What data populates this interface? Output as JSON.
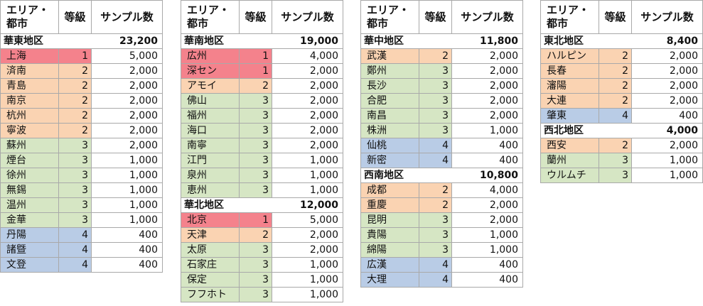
{
  "headers": {
    "area": "エリア・\n都市",
    "grade": "等級",
    "sample": "サンプル数"
  },
  "grade_colors": {
    "1": "#f4828c",
    "2": "#fad3b2",
    "3": "#d6e6c4",
    "4": "#b9cce6"
  },
  "columns": [
    {
      "left": 0,
      "sections": [
        {
          "region": "華東地区",
          "total": "23,200",
          "cities": [
            {
              "name": "上海",
              "grade": "1",
              "samples": "5,000"
            },
            {
              "name": "済南",
              "grade": "2",
              "samples": "2,000"
            },
            {
              "name": "青島",
              "grade": "2",
              "samples": "2,000"
            },
            {
              "name": "南京",
              "grade": "2",
              "samples": "2,000"
            },
            {
              "name": "杭州",
              "grade": "2",
              "samples": "2,000"
            },
            {
              "name": "寧波",
              "grade": "2",
              "samples": "2,000"
            },
            {
              "name": "蘇州",
              "grade": "3",
              "samples": "2,000"
            },
            {
              "name": "煙台",
              "grade": "3",
              "samples": "1,000"
            },
            {
              "name": "徐州",
              "grade": "3",
              "samples": "1,000"
            },
            {
              "name": "無錫",
              "grade": "3",
              "samples": "1,000"
            },
            {
              "name": "温州",
              "grade": "3",
              "samples": "1,000"
            },
            {
              "name": "金華",
              "grade": "3",
              "samples": "1,000"
            },
            {
              "name": "丹陽",
              "grade": "4",
              "samples": "400"
            },
            {
              "name": "諸曁",
              "grade": "4",
              "samples": "400"
            },
            {
              "name": "文登",
              "grade": "4",
              "samples": "400"
            }
          ]
        }
      ]
    },
    {
      "left": 254,
      "sections": [
        {
          "region": "華南地区",
          "total": "19,000",
          "cities": [
            {
              "name": "広州",
              "grade": "1",
              "samples": "4,000"
            },
            {
              "name": "深セン",
              "grade": "1",
              "samples": "2,000"
            },
            {
              "name": "アモイ",
              "grade": "2",
              "samples": "2,000"
            },
            {
              "name": "佛山",
              "grade": "3",
              "samples": "2,000"
            },
            {
              "name": "福州",
              "grade": "3",
              "samples": "2,000"
            },
            {
              "name": "海口",
              "grade": "3",
              "samples": "2,000"
            },
            {
              "name": "南寧",
              "grade": "3",
              "samples": "2,000"
            },
            {
              "name": "江門",
              "grade": "3",
              "samples": "1,000"
            },
            {
              "name": "泉州",
              "grade": "3",
              "samples": "1,000"
            },
            {
              "name": "恵州",
              "grade": "3",
              "samples": "1,000"
            }
          ]
        },
        {
          "region": "華北地区",
          "total": "12,000",
          "cities": [
            {
              "name": "北京",
              "grade": "1",
              "samples": "5,000"
            },
            {
              "name": "天津",
              "grade": "2",
              "samples": "2,000"
            },
            {
              "name": "太原",
              "grade": "3",
              "samples": "2,000"
            },
            {
              "name": "石家庄",
              "grade": "3",
              "samples": "1,000"
            },
            {
              "name": "保定",
              "grade": "3",
              "samples": "1,000"
            },
            {
              "name": "フフホト",
              "grade": "3",
              "samples": "1,000"
            }
          ]
        }
      ]
    },
    {
      "left": 507,
      "sections": [
        {
          "region": "華中地区",
          "total": "11,800",
          "cities": [
            {
              "name": "武漢",
              "grade": "2",
              "samples": "2,000"
            },
            {
              "name": "鄭州",
              "grade": "3",
              "samples": "2,000"
            },
            {
              "name": "長沙",
              "grade": "3",
              "samples": "2,000"
            },
            {
              "name": "合肥",
              "grade": "3",
              "samples": "2,000"
            },
            {
              "name": "南昌",
              "grade": "3",
              "samples": "2,000"
            },
            {
              "name": "株洲",
              "grade": "3",
              "samples": "1,000"
            },
            {
              "name": "仙桃",
              "grade": "4",
              "samples": "400"
            },
            {
              "name": "新密",
              "grade": "4",
              "samples": "400"
            }
          ]
        },
        {
          "region": "西南地区",
          "total": "10,800",
          "cities": [
            {
              "name": "成都",
              "grade": "2",
              "samples": "4,000"
            },
            {
              "name": "重慶",
              "grade": "2",
              "samples": "2,000"
            },
            {
              "name": "昆明",
              "grade": "3",
              "samples": "2,000"
            },
            {
              "name": "貴陽",
              "grade": "3",
              "samples": "1,000"
            },
            {
              "name": "綿陽",
              "grade": "3",
              "samples": "1,000"
            },
            {
              "name": "広漢",
              "grade": "4",
              "samples": "400"
            },
            {
              "name": "大理",
              "grade": "4",
              "samples": "400"
            }
          ]
        }
      ]
    },
    {
      "left": 760,
      "sections": [
        {
          "region": "東北地区",
          "total": "8,400",
          "cities": [
            {
              "name": "ハルピン",
              "grade": "2",
              "samples": "2,000"
            },
            {
              "name": "長春",
              "grade": "2",
              "samples": "2,000"
            },
            {
              "name": "瀋陽",
              "grade": "2",
              "samples": "2,000"
            },
            {
              "name": "大連",
              "grade": "2",
              "samples": "2,000"
            },
            {
              "name": "肇東",
              "grade": "4",
              "samples": "400"
            }
          ]
        },
        {
          "region": "西北地区",
          "total": "4,000",
          "cities": [
            {
              "name": "西安",
              "grade": "2",
              "samples": "2,000"
            },
            {
              "name": "蘭州",
              "grade": "3",
              "samples": "1,000"
            },
            {
              "name": "ウルムチ",
              "grade": "3",
              "samples": "1,000"
            }
          ]
        }
      ]
    }
  ]
}
